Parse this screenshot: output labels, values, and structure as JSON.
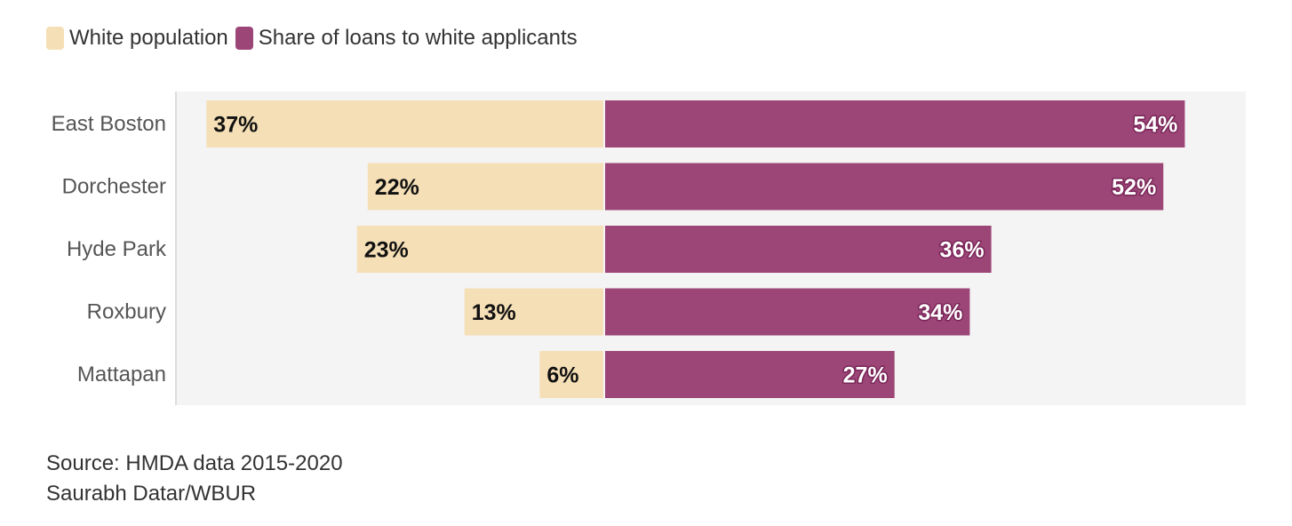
{
  "legend": {
    "white_population": "White population",
    "share_of_loans": "Share of loans to white applicants"
  },
  "colors": {
    "white_population": "#f5dfb6",
    "share_of_loans": "#9c4677",
    "plot_background": "#f4f4f4"
  },
  "chart_data": {
    "type": "bar",
    "orientation": "horizontal-diverging",
    "categories": [
      "East Boston",
      "Dorchester",
      "Hyde Park",
      "Roxbury",
      "Mattapan"
    ],
    "series": [
      {
        "name": "White population",
        "side": "left",
        "values": [
          37,
          22,
          23,
          13,
          6
        ],
        "labels": [
          "37%",
          "22%",
          "23%",
          "13%",
          "6%"
        ]
      },
      {
        "name": "Share of loans to white applicants",
        "side": "right",
        "values": [
          54,
          52,
          36,
          34,
          27
        ],
        "labels": [
          "54%",
          "52%",
          "36%",
          "34%",
          "27%"
        ]
      }
    ],
    "xlim": [
      -40,
      60
    ],
    "legend_position": "top-left",
    "grid": false
  },
  "footer": {
    "source": "Source: HMDA data 2015-2020",
    "credit": "Saurabh Datar/WBUR"
  }
}
